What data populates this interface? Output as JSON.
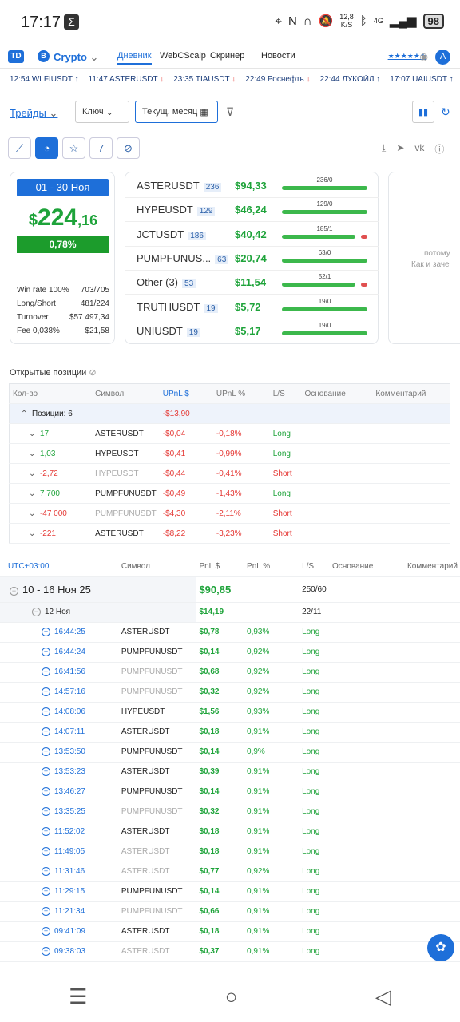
{
  "status": {
    "time": "17:17",
    "speed": "12,8",
    "speed_unit": "K/S",
    "net": "4G",
    "battery": "98"
  },
  "appbar": {
    "logo": "TD",
    "exchange": "Crypto",
    "nav": [
      "Дневник",
      "WebCScalp",
      "Скринер",
      "Новости"
    ],
    "rating": "★★★★★★",
    "avatar": "A"
  },
  "ticker": [
    {
      "time": "12:54",
      "sym": "WLFIUSDT",
      "dir": "up"
    },
    {
      "time": "11:47",
      "sym": "ASTERUSDT",
      "dir": "down"
    },
    {
      "time": "23:35",
      "sym": "TIAUSDT",
      "dir": "down"
    },
    {
      "time": "22:49",
      "sym": "Роснефть",
      "dir": "down"
    },
    {
      "time": "22:44",
      "sym": "ЛУКОЙЛ",
      "dir": "up"
    },
    {
      "time": "17:07",
      "sym": "UAIUSDT",
      "dir": "up"
    }
  ],
  "filters": {
    "trades_label": "Трейды",
    "key_label": "Ключ",
    "period_label": "Текущ. месяц"
  },
  "summary": {
    "date_range": "01 - 30 Ноя",
    "pnl_int": "224",
    "pnl_dec": ",16",
    "pnl_pct": "0,78%",
    "stats": [
      {
        "label": "Win rate 100%",
        "value": "703/705"
      },
      {
        "label": "Long/Short",
        "value": "481/224"
      },
      {
        "label": "Turnover",
        "value": "$57 497,34"
      },
      {
        "label": "Fee 0,038%",
        "value": "$21,58"
      }
    ]
  },
  "symbols": [
    {
      "name": "ASTERUSDT",
      "count": "236",
      "pnl": "$94,33",
      "wl": "236/0",
      "loss": false
    },
    {
      "name": "HYPEUSDT",
      "count": "129",
      "pnl": "$46,24",
      "wl": "129/0",
      "loss": false
    },
    {
      "name": "JCTUSDT",
      "count": "186",
      "pnl": "$40,42",
      "wl": "185/1",
      "loss": true
    },
    {
      "name": "PUMPFUNUS...",
      "count": "63",
      "pnl": "$20,74",
      "wl": "63/0",
      "loss": false
    },
    {
      "name": "Other (3)",
      "count": "53",
      "pnl": "$11,54",
      "wl": "52/1",
      "loss": true
    },
    {
      "name": "TRUTHUSDT",
      "count": "19",
      "pnl": "$5,72",
      "wl": "19/0",
      "loss": false
    },
    {
      "name": "UNIUSDT",
      "count": "19",
      "pnl": "$5,17",
      "wl": "19/0",
      "loss": false
    }
  ],
  "ghost": {
    "line1": "потому",
    "line2": "Как и заче"
  },
  "open_positions": {
    "title": "Открытые позиции",
    "headers": [
      "Кол-во",
      "Символ",
      "UPnL $",
      "UPnL %",
      "L/S",
      "Основание",
      "Комментарий"
    ],
    "group": {
      "label": "Позиции: 6",
      "upnl": "-$13,90"
    },
    "rows": [
      {
        "qty": "17",
        "sym": "ASTERUSDT",
        "upnl": "-$0,04",
        "pct": "-0,18%",
        "ls": "Long",
        "faded": false
      },
      {
        "qty": "1,03",
        "sym": "HYPEUSDT",
        "upnl": "-$0,41",
        "pct": "-0,99%",
        "ls": "Long",
        "faded": false
      },
      {
        "qty": "-2,72",
        "sym": "HYPEUSDT",
        "upnl": "-$0,44",
        "pct": "-0,41%",
        "ls": "Short",
        "faded": true
      },
      {
        "qty": "7 700",
        "sym": "PUMPFUNUSDT",
        "upnl": "-$0,49",
        "pct": "-1,43%",
        "ls": "Long",
        "faded": false
      },
      {
        "qty": "-47 000",
        "sym": "PUMPFUNUSDT",
        "upnl": "-$4,30",
        "pct": "-2,11%",
        "ls": "Short",
        "faded": true
      },
      {
        "qty": "-221",
        "sym": "ASTERUSDT",
        "upnl": "-$8,22",
        "pct": "-3,23%",
        "ls": "Short",
        "faded": false
      }
    ]
  },
  "history": {
    "headers": [
      "UTC+03:00",
      "Символ",
      "PnL $",
      "PnL %",
      "L/S",
      "Основание",
      "Комментарий"
    ],
    "week": {
      "label": "10 - 16 Ноя 25",
      "pnl": "$90,85",
      "wl": "250/60"
    },
    "day": {
      "label": "12 Ноя",
      "pnl": "$14,19",
      "wl": "22/11"
    },
    "rows": [
      {
        "t": "16:44:25",
        "sym": "ASTERUSDT",
        "pnl": "$0,78",
        "pct": "0,93%",
        "ls": "Long",
        "faded": false
      },
      {
        "t": "16:44:24",
        "sym": "PUMPFUNUSDT",
        "pnl": "$0,14",
        "pct": "0,92%",
        "ls": "Long",
        "faded": false
      },
      {
        "t": "16:41:56",
        "sym": "PUMPFUNUSDT",
        "pnl": "$0,68",
        "pct": "0,92%",
        "ls": "Long",
        "faded": true
      },
      {
        "t": "14:57:16",
        "sym": "PUMPFUNUSDT",
        "pnl": "$0,32",
        "pct": "0,92%",
        "ls": "Long",
        "faded": true
      },
      {
        "t": "14:08:06",
        "sym": "HYPEUSDT",
        "pnl": "$1,56",
        "pct": "0,93%",
        "ls": "Long",
        "faded": false
      },
      {
        "t": "14:07:11",
        "sym": "ASTERUSDT",
        "pnl": "$0,18",
        "pct": "0,91%",
        "ls": "Long",
        "faded": false
      },
      {
        "t": "13:53:50",
        "sym": "PUMPFUNUSDT",
        "pnl": "$0,14",
        "pct": "0,9%",
        "ls": "Long",
        "faded": false
      },
      {
        "t": "13:53:23",
        "sym": "ASTERUSDT",
        "pnl": "$0,39",
        "pct": "0,91%",
        "ls": "Long",
        "faded": false
      },
      {
        "t": "13:46:27",
        "sym": "PUMPFUNUSDT",
        "pnl": "$0,14",
        "pct": "0,91%",
        "ls": "Long",
        "faded": false
      },
      {
        "t": "13:35:25",
        "sym": "PUMPFUNUSDT",
        "pnl": "$0,32",
        "pct": "0,91%",
        "ls": "Long",
        "faded": true
      },
      {
        "t": "11:52:02",
        "sym": "ASTERUSDT",
        "pnl": "$0,18",
        "pct": "0,91%",
        "ls": "Long",
        "faded": false
      },
      {
        "t": "11:49:05",
        "sym": "ASTERUSDT",
        "pnl": "$0,18",
        "pct": "0,91%",
        "ls": "Long",
        "faded": true
      },
      {
        "t": "11:31:46",
        "sym": "ASTERUSDT",
        "pnl": "$0,77",
        "pct": "0,92%",
        "ls": "Long",
        "faded": true
      },
      {
        "t": "11:29:15",
        "sym": "PUMPFUNUSDT",
        "pnl": "$0,14",
        "pct": "0,91%",
        "ls": "Long",
        "faded": false
      },
      {
        "t": "11:21:34",
        "sym": "PUMPFUNUSDT",
        "pnl": "$0,66",
        "pct": "0,91%",
        "ls": "Long",
        "faded": true
      },
      {
        "t": "09:41:09",
        "sym": "ASTERUSDT",
        "pnl": "$0,18",
        "pct": "0,91%",
        "ls": "Long",
        "faded": false
      },
      {
        "t": "09:38:03",
        "sym": "ASTERUSDT",
        "pnl": "$0,37",
        "pct": "0,91%",
        "ls": "Long",
        "faded": true
      }
    ]
  }
}
